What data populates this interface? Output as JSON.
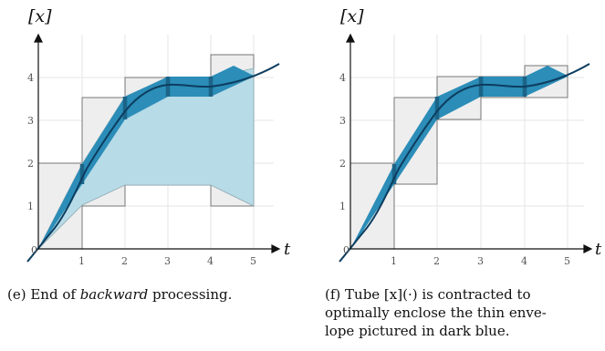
{
  "panels": [
    {
      "id": "e",
      "y_axis_label": "[x]",
      "x_axis_label": "t",
      "origin_label": "0",
      "x_ticks": [
        "1",
        "2",
        "3",
        "4",
        "5"
      ],
      "y_ticks": [
        "1",
        "2",
        "3",
        "4"
      ],
      "caption": {
        "prefix": "(e) End of ",
        "emphasis": "backward",
        "suffix": " processing."
      }
    },
    {
      "id": "f",
      "y_axis_label": "[x]",
      "x_axis_label": "t",
      "origin_label": "0",
      "x_ticks": [
        "1",
        "2",
        "3",
        "4",
        "5"
      ],
      "y_ticks": [
        "1",
        "2",
        "3",
        "4"
      ],
      "caption": {
        "line1": "(f) Tube [x](·) is contracted to",
        "line2": "optimally enclose the thin enve-",
        "line3": "lope pictured in dark blue."
      }
    }
  ],
  "colors": {
    "grid": "#e6e6e6",
    "box_fill": "#eeeeee",
    "box_stroke": "#777777",
    "tube_light": "#b7dbe7",
    "tube_dark": "#2b8db8",
    "slice_gate": "#1b6488",
    "trajectory": "#0d3d5f",
    "axis": "#111111",
    "tick_text": "#555555"
  }
}
